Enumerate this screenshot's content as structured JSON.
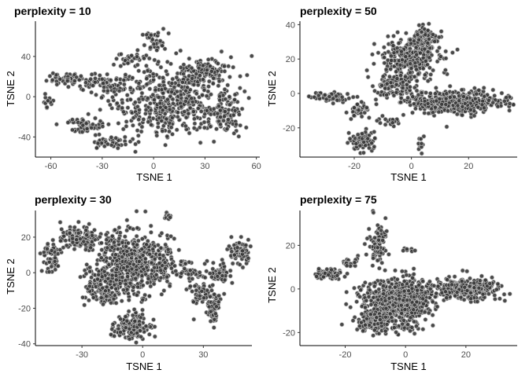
{
  "chart_data": [
    {
      "type": "scatter",
      "title": "perplexity = 10",
      "xlabel": "TSNE 1",
      "ylabel": "TSNE 2",
      "xlim": [
        -69,
        62
      ],
      "ylim": [
        -60,
        75
      ],
      "xticks": [
        -60,
        -30,
        0,
        30,
        60
      ],
      "yticks": [
        -40,
        0,
        40
      ],
      "clusters": [
        {
          "cx": 10,
          "cy": -2,
          "rx": 35,
          "ry": 35,
          "n": 520
        },
        {
          "cx": 0,
          "cy": 55,
          "rx": 7,
          "ry": 12,
          "n": 40
        },
        {
          "cx": -12,
          "cy": 38,
          "rx": 12,
          "ry": 6,
          "n": 30
        },
        {
          "cx": -50,
          "cy": 18,
          "rx": 13,
          "ry": 7,
          "n": 60
        },
        {
          "cx": -62,
          "cy": -5,
          "rx": 4,
          "ry": 7,
          "n": 15
        },
        {
          "cx": -40,
          "cy": -30,
          "rx": 12,
          "ry": 7,
          "n": 55
        },
        {
          "cx": -25,
          "cy": -45,
          "rx": 12,
          "ry": 6,
          "n": 45
        },
        {
          "cx": -28,
          "cy": 12,
          "rx": 12,
          "ry": 10,
          "n": 60
        },
        {
          "cx": 32,
          "cy": 25,
          "rx": 14,
          "ry": 10,
          "n": 80
        },
        {
          "cx": 42,
          "cy": -18,
          "rx": 10,
          "ry": 18,
          "n": 80
        }
      ]
    },
    {
      "type": "scatter",
      "title": "perplexity = 50",
      "xlabel": "TSNE 1",
      "ylabel": "TSNE 2",
      "xlim": [
        -39,
        37
      ],
      "ylim": [
        -37,
        42
      ],
      "xticks": [
        -20,
        0,
        20
      ],
      "yticks": [
        -20,
        0,
        20,
        40
      ],
      "clusters": [
        {
          "cx": 0,
          "cy": 22,
          "rx": 10,
          "ry": 12,
          "n": 300
        },
        {
          "cx": 5,
          "cy": 33,
          "rx": 5,
          "ry": 6,
          "n": 80
        },
        {
          "cx": 15,
          "cy": -5,
          "rx": 18,
          "ry": 7,
          "n": 420
        },
        {
          "cx": -5,
          "cy": 5,
          "rx": 8,
          "ry": 8,
          "n": 140
        },
        {
          "cx": -28,
          "cy": -2,
          "rx": 7,
          "ry": 2.5,
          "n": 60
        },
        {
          "cx": -19,
          "cy": -10,
          "rx": 4,
          "ry": 5,
          "n": 40
        },
        {
          "cx": -17,
          "cy": -27,
          "rx": 5,
          "ry": 6,
          "n": 80
        },
        {
          "cx": -8,
          "cy": -16,
          "rx": 4,
          "ry": 2.5,
          "n": 20
        },
        {
          "cx": 3,
          "cy": -30,
          "rx": 1.2,
          "ry": 5,
          "n": 15
        }
      ]
    },
    {
      "type": "scatter",
      "title": "perplexity = 30",
      "xlabel": "TSNE 1",
      "ylabel": "TSNE 2",
      "xlim": [
        -53,
        54
      ],
      "ylim": [
        -41,
        35
      ],
      "xticks": [
        -30,
        0,
        30
      ],
      "yticks": [
        -40,
        -20,
        0,
        20
      ],
      "clusters": [
        {
          "cx": -8,
          "cy": 5,
          "rx": 16,
          "ry": 20,
          "n": 500
        },
        {
          "cx": -30,
          "cy": 20,
          "rx": 10,
          "ry": 7,
          "n": 120
        },
        {
          "cx": -45,
          "cy": 10,
          "rx": 5,
          "ry": 8,
          "n": 60
        },
        {
          "cx": -20,
          "cy": -8,
          "rx": 10,
          "ry": 10,
          "n": 150
        },
        {
          "cx": -5,
          "cy": -30,
          "rx": 10,
          "ry": 7,
          "n": 150
        },
        {
          "cx": 8,
          "cy": 5,
          "rx": 8,
          "ry": 12,
          "n": 120
        },
        {
          "cx": 48,
          "cy": 12,
          "rx": 5,
          "ry": 7,
          "n": 80
        },
        {
          "cx": 38,
          "cy": 0,
          "rx": 6,
          "ry": 6,
          "n": 60
        },
        {
          "cx": 35,
          "cy": -20,
          "rx": 3,
          "ry": 8,
          "n": 60
        },
        {
          "cx": 30,
          "cy": -10,
          "rx": 6,
          "ry": 10,
          "n": 70
        },
        {
          "cx": 22,
          "cy": 0,
          "rx": 6,
          "ry": 2,
          "n": 25
        },
        {
          "cx": 12,
          "cy": 31,
          "rx": 3,
          "ry": 1.5,
          "n": 12
        },
        {
          "cx": 20,
          "cy": 5,
          "rx": 3,
          "ry": 2,
          "n": 15
        }
      ]
    },
    {
      "type": "scatter",
      "title": "perplexity = 75",
      "xlabel": "TSNE 1",
      "ylabel": "TSNE 2",
      "xlim": [
        -35,
        37
      ],
      "ylim": [
        -26,
        36
      ],
      "xticks": [
        -20,
        0,
        20
      ],
      "yticks": [
        -20,
        0,
        20
      ],
      "clusters": [
        {
          "cx": -2,
          "cy": -6,
          "rx": 12,
          "ry": 11,
          "n": 750
        },
        {
          "cx": -10,
          "cy": -16,
          "rx": 7,
          "ry": 5,
          "n": 120
        },
        {
          "cx": 20,
          "cy": 0,
          "rx": 12,
          "ry": 5,
          "n": 280
        },
        {
          "cx": -9,
          "cy": 20,
          "rx": 3,
          "ry": 10,
          "n": 90
        },
        {
          "cx": -25,
          "cy": 7,
          "rx": 5,
          "ry": 3,
          "n": 60
        },
        {
          "cx": -18,
          "cy": 12,
          "rx": 3,
          "ry": 3,
          "n": 25
        },
        {
          "cx": 1,
          "cy": 18,
          "rx": 2,
          "ry": 1,
          "n": 8
        }
      ]
    }
  ]
}
